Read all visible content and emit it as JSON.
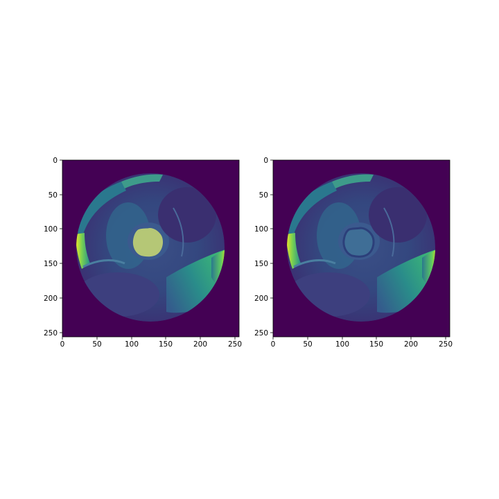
{
  "figure": {
    "background": "#ffffff",
    "panels": [
      {
        "id": "left",
        "content": "cardiac-mri-slice-with-segmentation-overlay",
        "x_ticks": [
          "0",
          "50",
          "100",
          "150",
          "200",
          "250"
        ],
        "y_ticks": [
          "0",
          "50",
          "100",
          "150",
          "200",
          "250"
        ]
      },
      {
        "id": "right",
        "content": "cardiac-mri-slice",
        "x_ticks": [
          "0",
          "50",
          "100",
          "150",
          "200",
          "250"
        ],
        "y_ticks": [
          "0",
          "50",
          "100",
          "150",
          "200",
          "250"
        ]
      }
    ],
    "axis_range": [
      0,
      256
    ],
    "colormap": "viridis",
    "colors": {
      "background_dark": "#440154",
      "tissue_dark": "#3b2a6e",
      "tissue_mid": "#31688e",
      "tissue_teal": "#21918c",
      "bright_green": "#5ec962",
      "bright_yellow": "#fde725",
      "mask_overlay": "#b5c776"
    }
  }
}
